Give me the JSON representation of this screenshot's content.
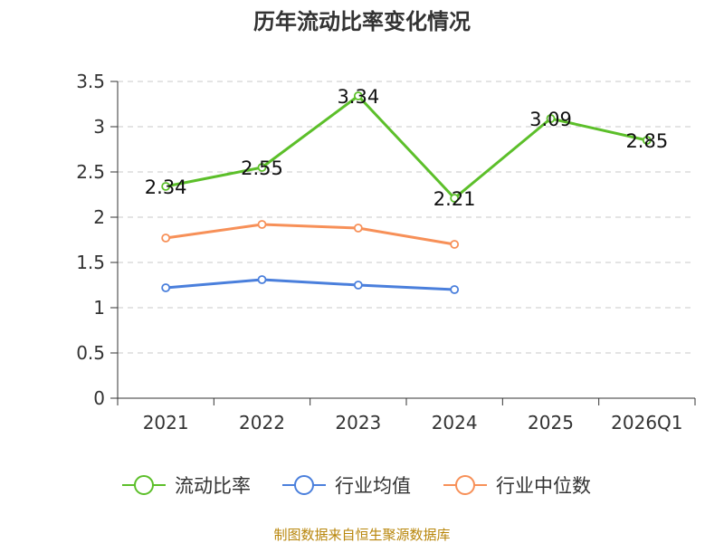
{
  "chart_data": {
    "type": "line",
    "title": "历年流动比率变化情况",
    "categories": [
      "2021",
      "2022",
      "2023",
      "2024",
      "2025",
      "2026Q1"
    ],
    "ylim": [
      0,
      3.5
    ],
    "yticks": [
      0,
      0.5,
      1,
      1.5,
      2,
      2.5,
      3,
      3.5
    ],
    "ytick_labels": [
      "0",
      "0.5",
      "1",
      "1.5",
      "2",
      "2.5",
      "3",
      "3.5"
    ],
    "grid": true,
    "legend_position": "bottom",
    "series": [
      {
        "name": "流动比率",
        "color": "#5cbf2a",
        "values": [
          2.34,
          2.55,
          3.34,
          2.21,
          3.09,
          2.85
        ],
        "labels": [
          "2.34",
          "2.55",
          "3.34",
          "2.21",
          "3.09",
          "2.85"
        ]
      },
      {
        "name": "行业均值",
        "color": "#4a7fdc",
        "values": [
          1.22,
          1.31,
          1.25,
          1.2,
          null,
          null
        ]
      },
      {
        "name": "行业中位数",
        "color": "#f79058",
        "values": [
          1.77,
          1.92,
          1.88,
          1.7,
          null,
          null
        ]
      }
    ]
  },
  "source": "制图数据来自恒生聚源数据库"
}
